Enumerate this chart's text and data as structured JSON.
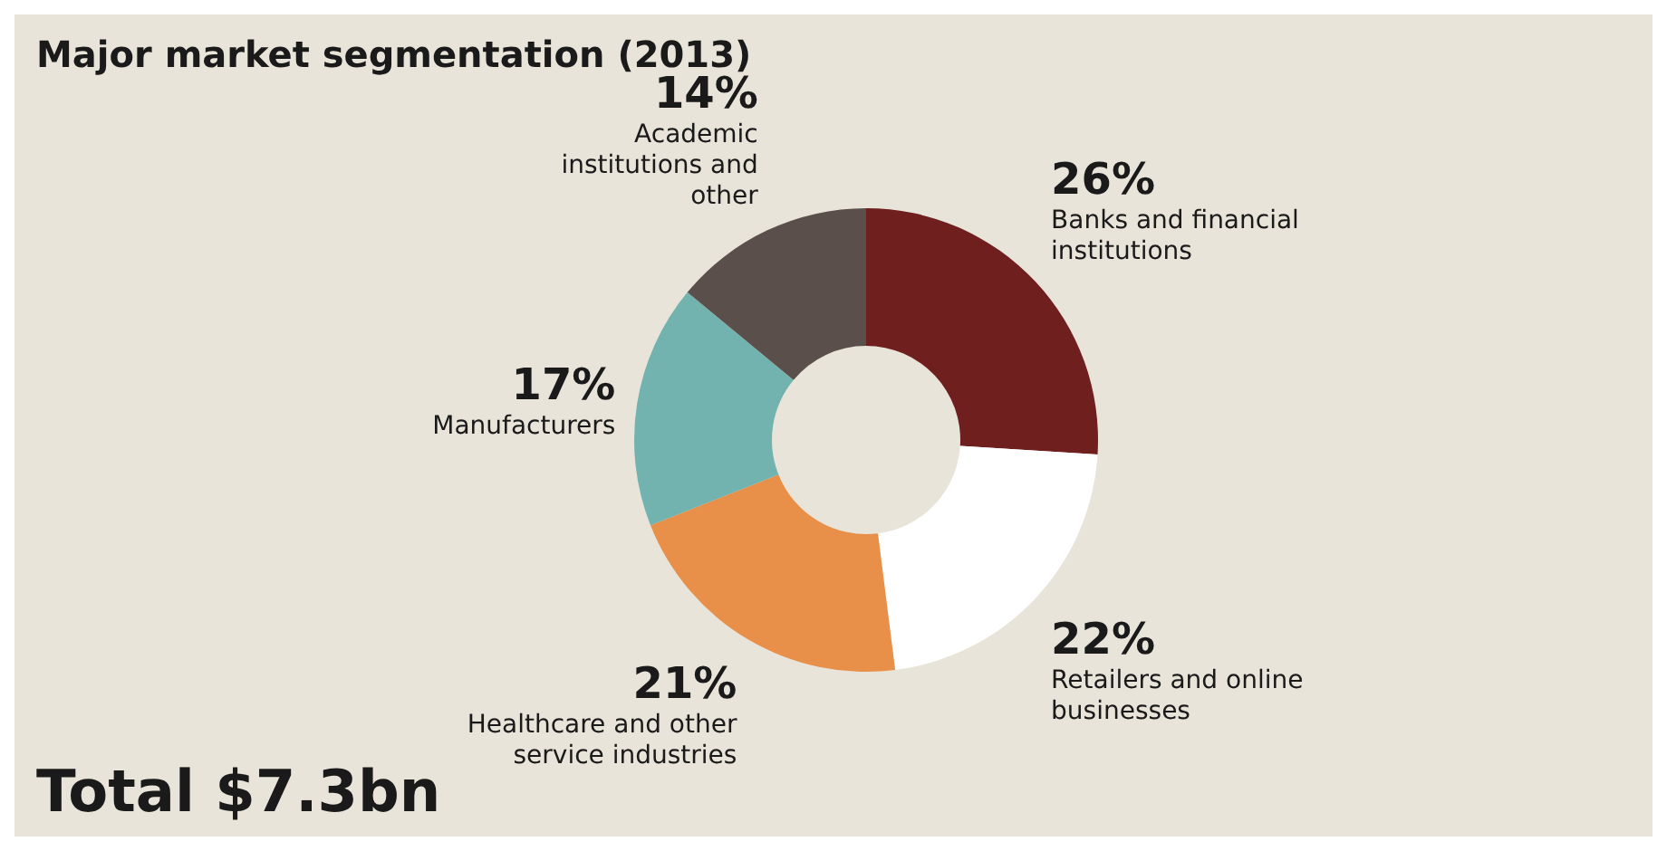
{
  "chart_data": {
    "type": "donut",
    "title": "Major market segmentation (2013)",
    "categories": [
      "Banks and financial institutions",
      "Retailers and online businesses",
      "Healthcare and other service industries",
      "Manufacturers",
      "Academic institutions and other"
    ],
    "values": [
      26,
      22,
      21,
      17,
      14
    ],
    "value_labels": [
      "26%",
      "22%",
      "21%",
      "17%",
      "14%"
    ],
    "colors": [
      "#6e1f1e",
      "#ffffff",
      "#e8904a",
      "#72b3b0",
      "#5a4f4a"
    ],
    "annotations": [
      "Total $7.3bn"
    ]
  }
}
